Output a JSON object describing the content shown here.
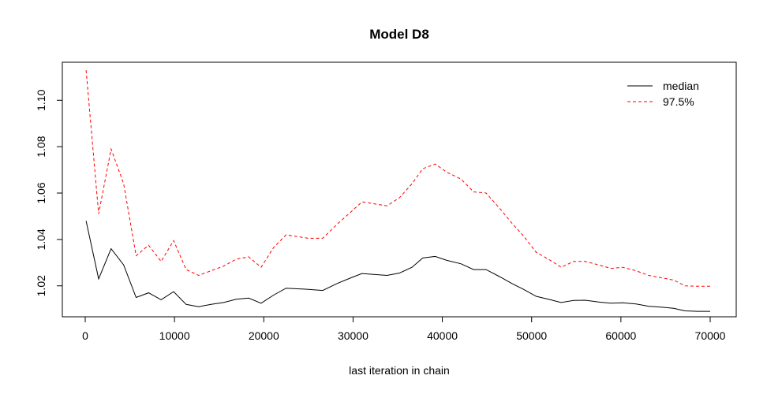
{
  "chart_data": {
    "type": "line",
    "title": "Model D8",
    "xlabel": "last iteration in chain",
    "ylabel": "",
    "xlim": [
      0,
      70000
    ],
    "ylim": [
      1.007,
      1.113
    ],
    "x_ticks": [
      0,
      10000,
      20000,
      30000,
      40000,
      50000,
      60000,
      70000
    ],
    "x_tick_labels": [
      "0",
      "10000",
      "20000",
      "30000",
      "40000",
      "50000",
      "60000",
      "70000"
    ],
    "y_ticks": [
      1.02,
      1.04,
      1.06,
      1.08,
      1.1
    ],
    "y_tick_labels": [
      "1.02",
      "1.04",
      "1.06",
      "1.08",
      "1.10"
    ],
    "grid": false,
    "legend_position": "top-right",
    "x": [
      100,
      1500,
      2900,
      4300,
      5700,
      7100,
      8500,
      9900,
      11300,
      12700,
      14100,
      15500,
      16900,
      18300,
      19700,
      21100,
      22500,
      25000,
      26600,
      28200,
      29800,
      31000,
      33800,
      35200,
      36600,
      37800,
      39200,
      40500,
      42100,
      43500,
      44900,
      46400,
      47800,
      49100,
      50500,
      52100,
      53300,
      54700,
      56000,
      57500,
      58900,
      60200,
      61700,
      63100,
      64500,
      65900,
      67200,
      68600,
      70000
    ],
    "series": [
      {
        "name": "median",
        "color": "#000000",
        "dash": "solid",
        "values": [
          1.048,
          1.023,
          1.036,
          1.029,
          1.015,
          1.017,
          1.014,
          1.0175,
          1.012,
          1.011,
          1.012,
          1.0128,
          1.0142,
          1.0147,
          1.0125,
          1.016,
          1.019,
          1.0185,
          1.018,
          1.021,
          1.0235,
          1.0253,
          1.0245,
          1.0255,
          1.028,
          1.032,
          1.0327,
          1.031,
          1.0295,
          1.027,
          1.027,
          1.024,
          1.021,
          1.0185,
          1.0155,
          1.014,
          1.0128,
          1.0137,
          1.0138,
          1.013,
          1.0125,
          1.0127,
          1.0122,
          1.0112,
          1.0108,
          1.0103,
          1.0092,
          1.009,
          1.009
        ]
      },
      {
        "name": "97.5%",
        "color": "#ff0000",
        "dash": "dashed",
        "values": [
          1.113,
          1.051,
          1.079,
          1.064,
          1.033,
          1.0375,
          1.0305,
          1.0395,
          1.027,
          1.0245,
          1.0265,
          1.0285,
          1.0315,
          1.0325,
          1.028,
          1.0365,
          1.042,
          1.0405,
          1.0405,
          1.0465,
          1.052,
          1.0562,
          1.0545,
          1.058,
          1.064,
          1.0705,
          1.0725,
          1.069,
          1.066,
          1.0605,
          1.06,
          1.0535,
          1.047,
          1.0415,
          1.0345,
          1.031,
          1.028,
          1.0305,
          1.0305,
          1.029,
          1.0275,
          1.028,
          1.0265,
          1.0245,
          1.0235,
          1.0225,
          1.02,
          1.0198,
          1.0198
        ]
      }
    ]
  }
}
